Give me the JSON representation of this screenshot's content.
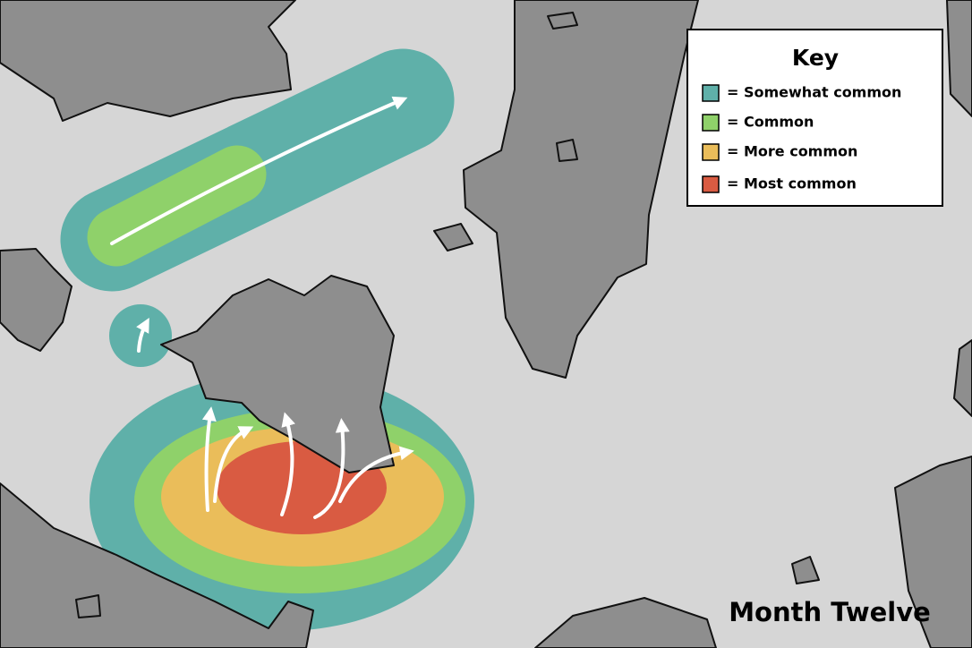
{
  "legend": {
    "title": "Key",
    "items": [
      {
        "label": "= Somewhat common",
        "color": "#5fb0a9"
      },
      {
        "label": "= Common",
        "color": "#8fd16a"
      },
      {
        "label": "= More common",
        "color": "#eabd5a"
      },
      {
        "label": "= Most common",
        "color": "#d95b42"
      }
    ]
  },
  "caption": "Month Twelve"
}
